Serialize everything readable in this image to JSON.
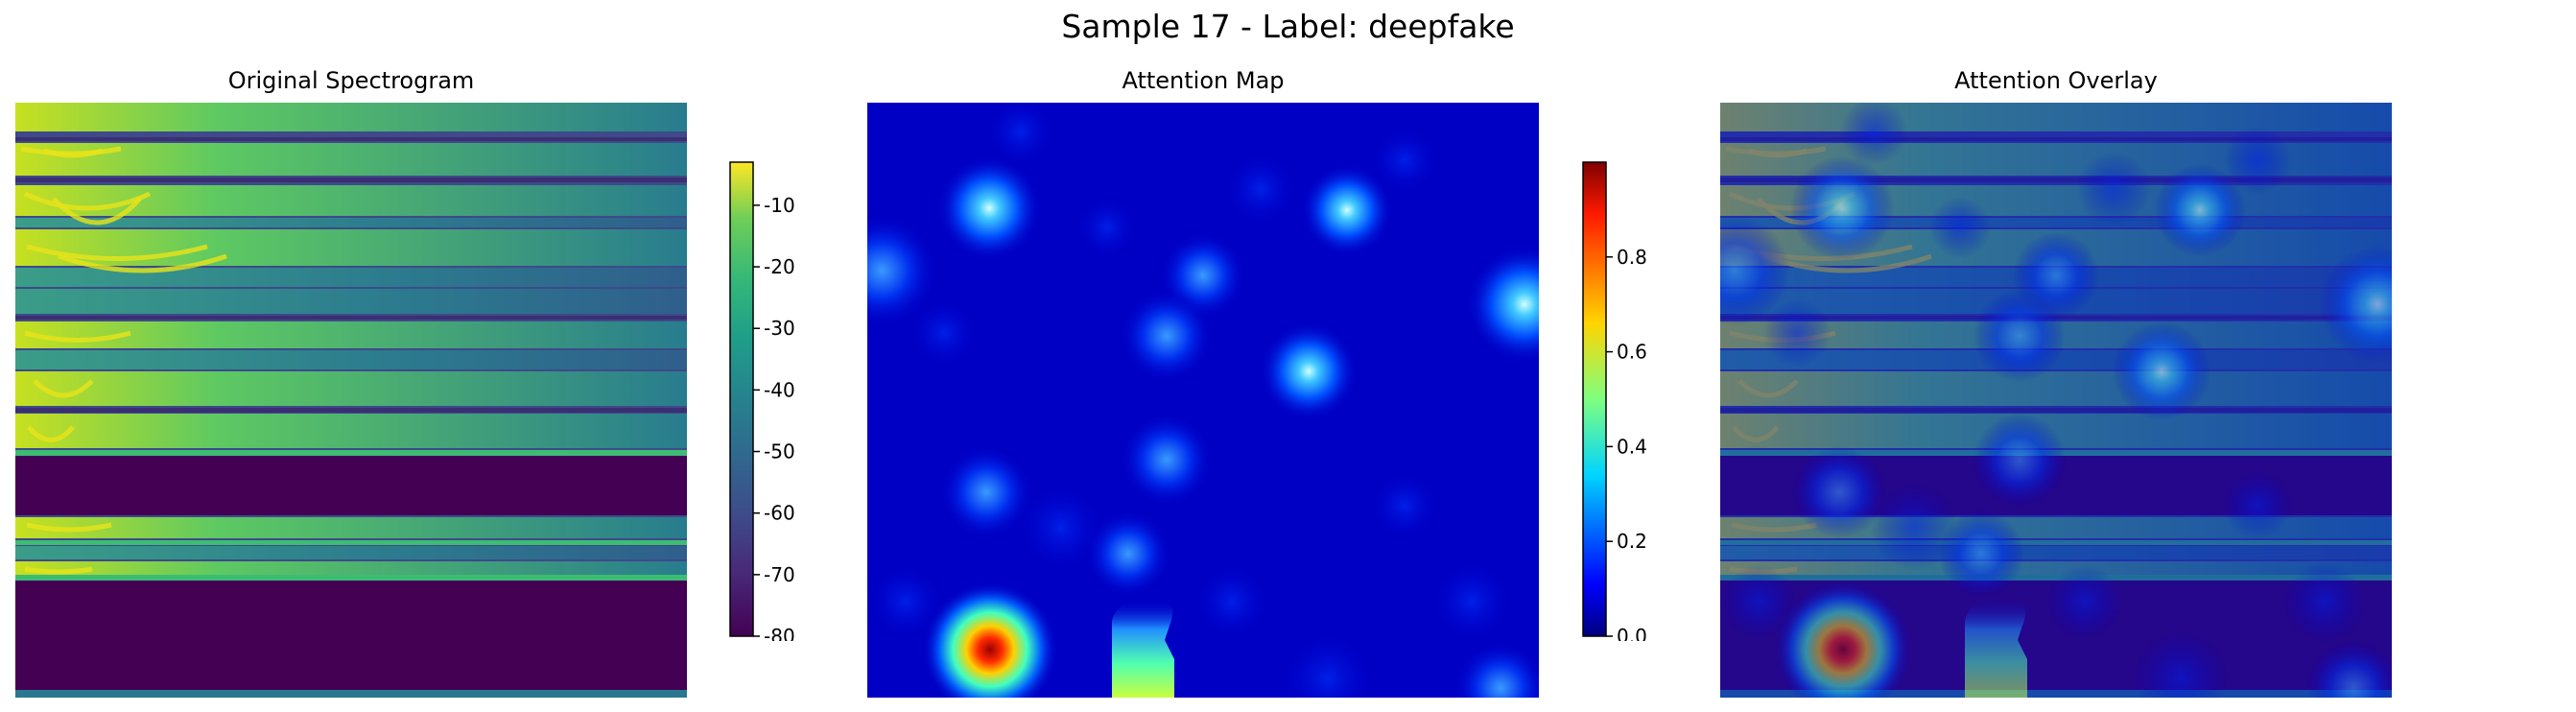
{
  "figure": {
    "title": "Sample 17 - Label: deepfake"
  },
  "chart_data": [
    {
      "type": "heatmap",
      "title": "Original Spectrogram",
      "axis": "off",
      "colormap": "viridis",
      "colorbar": {
        "range": [
          -80,
          -3
        ],
        "ticks": [
          -10,
          -20,
          -30,
          -40,
          -50,
          -60,
          -70,
          -80
        ]
      }
    },
    {
      "type": "heatmap",
      "title": "Attention Map",
      "axis": "off",
      "colormap": "jet",
      "colorbar": {
        "range": [
          0,
          1
        ],
        "ticks": [
          0.0,
          0.2,
          0.4,
          0.6,
          0.8
        ],
        "tick_labels": [
          "0.0",
          "0.2",
          "0.4",
          "0.6",
          "0.8"
        ]
      }
    },
    {
      "type": "heatmap",
      "title": "Attention Overlay",
      "axis": "off",
      "colormap": "viridis + jet overlay"
    }
  ]
}
